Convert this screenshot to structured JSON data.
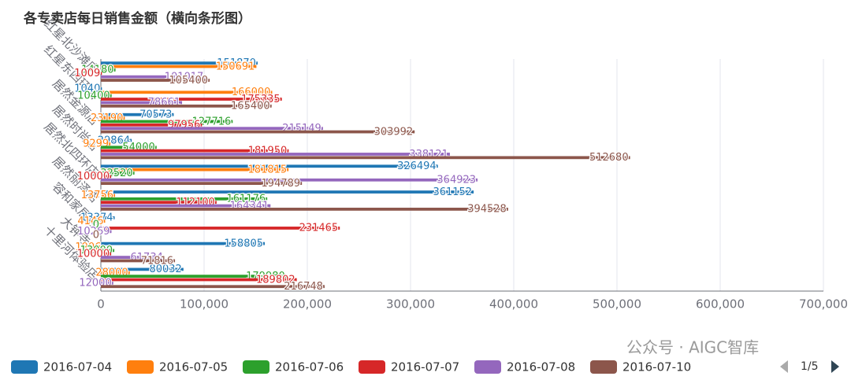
{
  "chart_data": {
    "type": "hbar",
    "title": "各专卖店每日销售金额（横向条形图）",
    "categories": [
      "红星北沙滩店",
      "红星东四环店",
      "居然金源店",
      "居然时尚店",
      "居然北四环店",
      "居然丽泽店",
      "容和家居店",
      "大钟寺店",
      "十里河体验店"
    ],
    "series": [
      {
        "name": "2016-07-04",
        "color": "#1f77b4",
        "values": [
          151870,
          1040,
          70573,
          29864,
          326494,
          361152,
          13374,
          158805,
          80032
        ]
      },
      {
        "name": "2016-07-05",
        "color": "#ff7f0e",
        "values": [
          150691,
          166000,
          23190,
          9299,
          181815,
          13756,
          4146,
          1906,
          28000
        ]
      },
      {
        "name": "2016-07-06",
        "color": "#2ca02c",
        "values": [
          14180,
          10400,
          127716,
          54000,
          32520,
          161176,
          0,
          13000,
          179980
        ]
      },
      {
        "name": "2016-07-07",
        "color": "#d62728",
        "values": [
          1009,
          175335,
          97956,
          181950,
          10000,
          112100,
          231465,
          10000,
          189802
        ]
      },
      {
        "name": "2016-07-08",
        "color": "#9467bd",
        "values": [
          101017,
          78661,
          215149,
          338121,
          364923,
          164341,
          10269,
          61734,
          12000
        ]
      },
      {
        "name": "2016-07-10",
        "color": "#8c564b",
        "values": [
          105400,
          165400,
          303992,
          512680,
          194789,
          394528,
          0,
          71816,
          216748
        ]
      }
    ],
    "xlim": [
      0,
      700000
    ],
    "xticks": [
      0,
      {
        "value": 100000,
        "label": "100,000"
      },
      {
        "value": 200000,
        "label": "200,000"
      },
      {
        "value": 300000,
        "label": "300,000"
      },
      {
        "value": 400000,
        "label": "400,000"
      },
      {
        "value": 500000,
        "label": "500,000"
      },
      {
        "value": 600000,
        "label": "600,000"
      },
      {
        "value": 700000,
        "label": "700,000"
      }
    ],
    "grid": true,
    "legend_position": "bottom",
    "legend_page": "1/5",
    "watermark": "公众号 · AIGC智库"
  }
}
